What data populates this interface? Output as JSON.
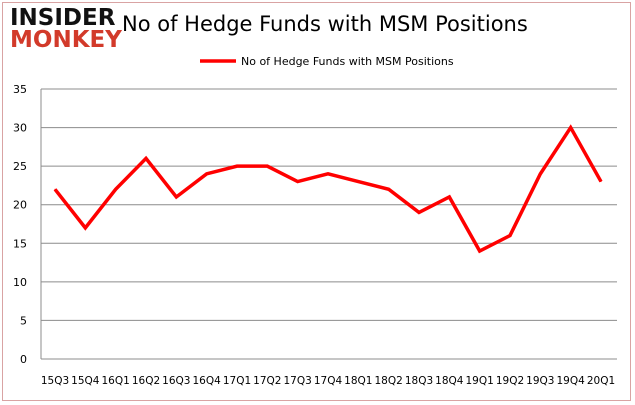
{
  "logo": {
    "line1": "INSIDER",
    "line2": "MONKEY"
  },
  "chart_data": {
    "type": "line",
    "title": "No of Hedge Funds with MSM Positions",
    "categories": [
      "15Q3",
      "15Q4",
      "16Q1",
      "16Q2",
      "16Q3",
      "16Q4",
      "17Q1",
      "17Q2",
      "17Q3",
      "17Q4",
      "18Q1",
      "18Q2",
      "18Q3",
      "18Q4",
      "19Q1",
      "19Q2",
      "19Q3",
      "19Q4",
      "20Q1"
    ],
    "series": [
      {
        "name": "No of Hedge Funds with MSM Positions",
        "color": "#ff0000",
        "values": [
          22,
          17,
          22,
          26,
          21,
          24,
          25,
          25,
          23,
          24,
          23,
          22,
          19,
          21,
          14,
          16,
          24,
          30,
          23
        ]
      }
    ],
    "ylim": [
      0,
      35
    ],
    "yticks": [
      0,
      5,
      10,
      15,
      20,
      25,
      30,
      35
    ],
    "grid": true,
    "legend": "top-center"
  }
}
